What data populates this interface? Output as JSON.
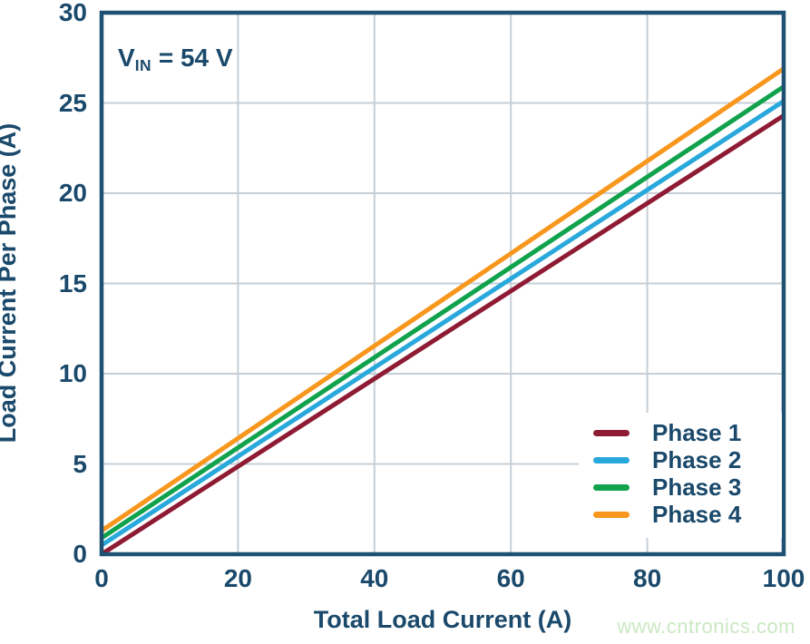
{
  "watermark": "www.cntronics.com",
  "colors": {
    "text_navy": "#1A496B",
    "frame_navy": "#1E5174",
    "grid": "#C6CFD7",
    "background": "#FFFFFF",
    "watermark_green": "#CBE8C2"
  },
  "chart_data": {
    "type": "line",
    "title": "",
    "annotation": {
      "var": "V",
      "subscript": "IN",
      "suffix": " = 54 V"
    },
    "xlabel": "Total Load Current (A)",
    "ylabel": "Load Current Per Phase (A)",
    "xlim": [
      0,
      100
    ],
    "ylim": [
      0,
      30
    ],
    "xticks": [
      0,
      20,
      40,
      60,
      80,
      100
    ],
    "yticks": [
      0,
      5,
      10,
      15,
      20,
      25,
      30
    ],
    "grid": true,
    "legend_position": "lower right",
    "series": [
      {
        "name": "Phase 1",
        "color": "#8E1B33",
        "x": [
          0,
          100
        ],
        "y": [
          0.0,
          24.3
        ]
      },
      {
        "name": "Phase 2",
        "color": "#29A8DC",
        "x": [
          0,
          100
        ],
        "y": [
          0.5,
          25.1
        ]
      },
      {
        "name": "Phase 3",
        "color": "#10A24C",
        "x": [
          0,
          100
        ],
        "y": [
          0.9,
          25.9
        ]
      },
      {
        "name": "Phase 4",
        "color": "#F8971D",
        "x": [
          0,
          100
        ],
        "y": [
          1.3,
          26.9
        ]
      }
    ]
  }
}
